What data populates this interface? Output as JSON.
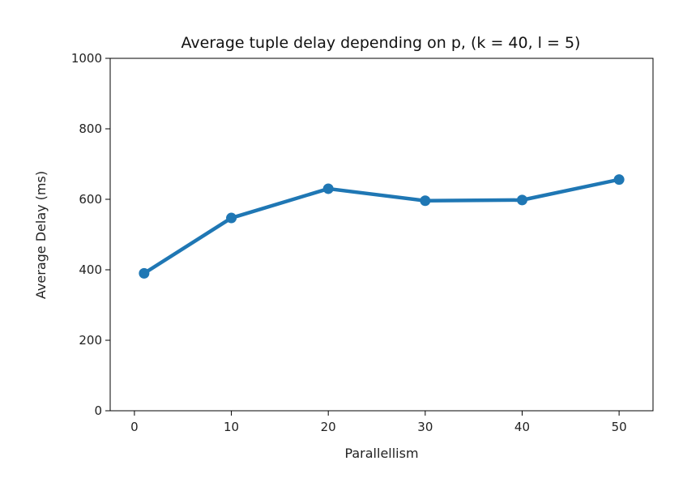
{
  "chart_data": {
    "type": "line",
    "title": "Average tuple delay depending on p, (k = 40, l = 5)",
    "xlabel": "Parallellism",
    "ylabel": "Average Delay (ms)",
    "x": [
      1,
      10,
      20,
      30,
      40,
      50
    ],
    "series": [
      {
        "values": [
          390,
          547,
          630,
          596,
          598,
          656
        ],
        "color": "#1f77b4",
        "marker": "circle"
      }
    ],
    "xlim": [
      -2.5,
      53.5
    ],
    "ylim": [
      0,
      1000
    ],
    "xticks": [
      0,
      10,
      20,
      30,
      40,
      50
    ],
    "yticks": [
      0,
      200,
      400,
      600,
      800,
      1000
    ],
    "grid": false,
    "legend": "none"
  }
}
